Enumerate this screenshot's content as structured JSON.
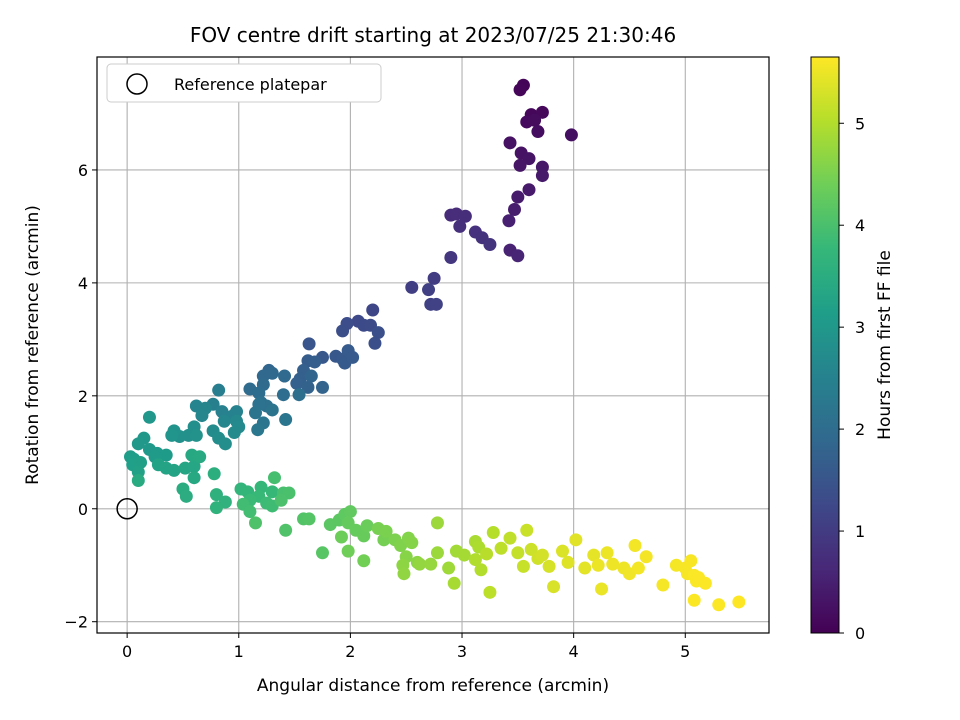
{
  "chart_data": {
    "type": "scatter",
    "title": "FOV centre drift starting at 2023/07/25 21:30:46",
    "xlabel": "Angular distance from reference (arcmin)",
    "ylabel": "Rotation from reference (arcmin)",
    "xlim": [
      -0.27,
      5.75
    ],
    "ylim": [
      -2.2,
      8.0
    ],
    "xticks": [
      0,
      1,
      2,
      3,
      4,
      5
    ],
    "yticks": [
      -2,
      0,
      2,
      4,
      6
    ],
    "grid": true,
    "legend": {
      "placement": "top-left",
      "entries": [
        "Reference platepar"
      ]
    },
    "reference_point": {
      "x": 0,
      "y": 0
    },
    "colorbar": {
      "label": "Hours from first FF file",
      "colormap": "viridis",
      "range": [
        0,
        5.65
      ],
      "ticks": [
        0,
        1,
        2,
        3,
        4,
        5
      ]
    },
    "colormap_stops": [
      "#440154",
      "#482878",
      "#3e4989",
      "#31688e",
      "#26828e",
      "#1f9e89",
      "#35b779",
      "#6ece58",
      "#b5de2b",
      "#fde725"
    ],
    "points": [
      {
        "x": 3.55,
        "y": 7.5,
        "c": 0.05
      },
      {
        "x": 3.52,
        "y": 7.42,
        "c": 0.08
      },
      {
        "x": 3.62,
        "y": 6.98,
        "c": 0.1
      },
      {
        "x": 3.72,
        "y": 7.02,
        "c": 0.12
      },
      {
        "x": 3.58,
        "y": 6.85,
        "c": 0.15
      },
      {
        "x": 3.65,
        "y": 6.88,
        "c": 0.18
      },
      {
        "x": 3.68,
        "y": 6.68,
        "c": 0.2
      },
      {
        "x": 3.98,
        "y": 6.62,
        "c": 0.22
      },
      {
        "x": 3.43,
        "y": 6.48,
        "c": 0.25
      },
      {
        "x": 3.53,
        "y": 6.3,
        "c": 0.28
      },
      {
        "x": 3.6,
        "y": 6.2,
        "c": 0.3
      },
      {
        "x": 3.52,
        "y": 6.08,
        "c": 0.32
      },
      {
        "x": 3.72,
        "y": 6.05,
        "c": 0.35
      },
      {
        "x": 3.72,
        "y": 5.9,
        "c": 0.38
      },
      {
        "x": 3.6,
        "y": 5.65,
        "c": 0.4
      },
      {
        "x": 3.5,
        "y": 5.52,
        "c": 0.42
      },
      {
        "x": 3.47,
        "y": 5.3,
        "c": 0.45
      },
      {
        "x": 3.42,
        "y": 5.1,
        "c": 0.5
      },
      {
        "x": 3.43,
        "y": 4.58,
        "c": 0.55
      },
      {
        "x": 3.5,
        "y": 4.48,
        "c": 0.58
      },
      {
        "x": 2.9,
        "y": 5.2,
        "c": 0.7
      },
      {
        "x": 2.95,
        "y": 5.22,
        "c": 0.72
      },
      {
        "x": 3.03,
        "y": 5.18,
        "c": 0.75
      },
      {
        "x": 2.98,
        "y": 5.0,
        "c": 0.78
      },
      {
        "x": 3.12,
        "y": 4.9,
        "c": 0.8
      },
      {
        "x": 3.18,
        "y": 4.8,
        "c": 0.82
      },
      {
        "x": 3.25,
        "y": 4.68,
        "c": 0.85
      },
      {
        "x": 2.9,
        "y": 4.45,
        "c": 0.9
      },
      {
        "x": 2.75,
        "y": 4.08,
        "c": 1.0
      },
      {
        "x": 2.55,
        "y": 3.92,
        "c": 1.05
      },
      {
        "x": 2.7,
        "y": 3.88,
        "c": 1.08
      },
      {
        "x": 2.72,
        "y": 3.62,
        "c": 1.1
      },
      {
        "x": 2.77,
        "y": 3.62,
        "c": 1.12
      },
      {
        "x": 2.2,
        "y": 3.52,
        "c": 1.2
      },
      {
        "x": 2.07,
        "y": 3.32,
        "c": 1.25
      },
      {
        "x": 2.12,
        "y": 3.25,
        "c": 1.28
      },
      {
        "x": 2.18,
        "y": 3.25,
        "c": 1.3
      },
      {
        "x": 1.97,
        "y": 3.28,
        "c": 1.32
      },
      {
        "x": 1.93,
        "y": 3.15,
        "c": 1.35
      },
      {
        "x": 2.25,
        "y": 3.12,
        "c": 1.38
      },
      {
        "x": 2.22,
        "y": 2.93,
        "c": 1.4
      },
      {
        "x": 1.63,
        "y": 2.92,
        "c": 1.5
      },
      {
        "x": 1.75,
        "y": 2.68,
        "c": 1.55
      },
      {
        "x": 1.87,
        "y": 2.7,
        "c": 1.55
      },
      {
        "x": 1.93,
        "y": 2.65,
        "c": 1.58
      },
      {
        "x": 1.95,
        "y": 2.58,
        "c": 1.6
      },
      {
        "x": 1.98,
        "y": 2.8,
        "c": 1.62
      },
      {
        "x": 2.02,
        "y": 2.68,
        "c": 1.62
      },
      {
        "x": 1.62,
        "y": 2.62,
        "c": 1.65
      },
      {
        "x": 1.68,
        "y": 2.6,
        "c": 1.68
      },
      {
        "x": 1.58,
        "y": 2.45,
        "c": 1.7
      },
      {
        "x": 1.55,
        "y": 2.3,
        "c": 1.72
      },
      {
        "x": 1.52,
        "y": 2.22,
        "c": 1.75
      },
      {
        "x": 1.62,
        "y": 2.15,
        "c": 1.78
      },
      {
        "x": 1.75,
        "y": 2.15,
        "c": 1.8
      },
      {
        "x": 1.65,
        "y": 2.35,
        "c": 1.82
      },
      {
        "x": 1.27,
        "y": 2.45,
        "c": 1.85
      },
      {
        "x": 1.3,
        "y": 2.4,
        "c": 1.88
      },
      {
        "x": 1.22,
        "y": 2.35,
        "c": 1.9
      },
      {
        "x": 1.41,
        "y": 2.35,
        "c": 1.92
      },
      {
        "x": 1.22,
        "y": 2.2,
        "c": 1.95
      },
      {
        "x": 1.1,
        "y": 2.12,
        "c": 1.98
      },
      {
        "x": 1.18,
        "y": 2.05,
        "c": 2.0
      },
      {
        "x": 1.4,
        "y": 2.02,
        "c": 2.02
      },
      {
        "x": 1.54,
        "y": 2.02,
        "c": 2.05
      },
      {
        "x": 1.2,
        "y": 1.88,
        "c": 2.08
      },
      {
        "x": 1.25,
        "y": 1.82,
        "c": 2.1
      },
      {
        "x": 1.18,
        "y": 1.85,
        "c": 2.12
      },
      {
        "x": 1.3,
        "y": 1.75,
        "c": 2.15
      },
      {
        "x": 1.15,
        "y": 1.7,
        "c": 2.18
      },
      {
        "x": 1.42,
        "y": 1.58,
        "c": 2.2
      },
      {
        "x": 1.22,
        "y": 1.52,
        "c": 2.22
      },
      {
        "x": 1.17,
        "y": 1.4,
        "c": 2.25
      },
      {
        "x": 0.82,
        "y": 2.1,
        "c": 2.4
      },
      {
        "x": 0.77,
        "y": 1.85,
        "c": 2.45
      },
      {
        "x": 0.85,
        "y": 1.72,
        "c": 2.48
      },
      {
        "x": 0.95,
        "y": 1.65,
        "c": 2.5
      },
      {
        "x": 0.98,
        "y": 1.72,
        "c": 2.52
      },
      {
        "x": 0.62,
        "y": 1.82,
        "c": 2.55
      },
      {
        "x": 0.7,
        "y": 1.78,
        "c": 2.58
      },
      {
        "x": 0.67,
        "y": 1.65,
        "c": 2.6
      },
      {
        "x": 0.87,
        "y": 1.55,
        "c": 2.62
      },
      {
        "x": 0.98,
        "y": 1.55,
        "c": 2.65
      },
      {
        "x": 1.0,
        "y": 1.45,
        "c": 2.68
      },
      {
        "x": 0.96,
        "y": 1.35,
        "c": 2.7
      },
      {
        "x": 0.77,
        "y": 1.38,
        "c": 2.72
      },
      {
        "x": 0.82,
        "y": 1.25,
        "c": 2.75
      },
      {
        "x": 0.88,
        "y": 1.15,
        "c": 2.78
      },
      {
        "x": 0.6,
        "y": 1.45,
        "c": 2.8
      },
      {
        "x": 0.55,
        "y": 1.3,
        "c": 2.82
      },
      {
        "x": 0.47,
        "y": 1.28,
        "c": 2.85
      },
      {
        "x": 0.62,
        "y": 1.3,
        "c": 2.88
      },
      {
        "x": 0.42,
        "y": 1.38,
        "c": 2.9
      },
      {
        "x": 0.4,
        "y": 1.3,
        "c": 2.92
      },
      {
        "x": 0.2,
        "y": 1.62,
        "c": 2.95
      },
      {
        "x": 0.15,
        "y": 1.25,
        "c": 2.98
      },
      {
        "x": 0.1,
        "y": 1.15,
        "c": 3.0
      },
      {
        "x": 0.2,
        "y": 1.05,
        "c": 3.02
      },
      {
        "x": 0.27,
        "y": 0.98,
        "c": 3.05
      },
      {
        "x": 0.25,
        "y": 0.92,
        "c": 3.08
      },
      {
        "x": 0.35,
        "y": 0.95,
        "c": 3.1
      },
      {
        "x": 0.03,
        "y": 0.92,
        "c": 3.12
      },
      {
        "x": 0.06,
        "y": 0.88,
        "c": 3.15
      },
      {
        "x": 0.05,
        "y": 0.78,
        "c": 3.18
      },
      {
        "x": 0.12,
        "y": 0.82,
        "c": 3.2
      },
      {
        "x": 0.1,
        "y": 0.65,
        "c": 3.22
      },
      {
        "x": 0.28,
        "y": 0.78,
        "c": 3.25
      },
      {
        "x": 0.35,
        "y": 0.72,
        "c": 3.28
      },
      {
        "x": 0.42,
        "y": 0.68,
        "c": 3.3
      },
      {
        "x": 0.52,
        "y": 0.72,
        "c": 3.32
      },
      {
        "x": 0.6,
        "y": 0.75,
        "c": 3.35
      },
      {
        "x": 0.6,
        "y": 0.55,
        "c": 3.38
      },
      {
        "x": 0.58,
        "y": 0.95,
        "c": 3.4
      },
      {
        "x": 0.65,
        "y": 0.92,
        "c": 3.42
      },
      {
        "x": 0.1,
        "y": 0.5,
        "c": 3.45
      },
      {
        "x": 0.5,
        "y": 0.35,
        "c": 3.48
      },
      {
        "x": 0.53,
        "y": 0.22,
        "c": 3.5
      },
      {
        "x": 0.78,
        "y": 0.62,
        "c": 3.55
      },
      {
        "x": 0.8,
        "y": 0.25,
        "c": 3.6
      },
      {
        "x": 0.88,
        "y": 0.12,
        "c": 3.62
      },
      {
        "x": 0.8,
        "y": 0.02,
        "c": 3.65
      },
      {
        "x": 1.02,
        "y": 0.35,
        "c": 3.7
      },
      {
        "x": 1.08,
        "y": 0.3,
        "c": 3.72
      },
      {
        "x": 1.2,
        "y": 0.38,
        "c": 3.75
      },
      {
        "x": 1.3,
        "y": 0.3,
        "c": 3.78
      },
      {
        "x": 1.18,
        "y": 0.22,
        "c": 3.8
      },
      {
        "x": 1.1,
        "y": 0.15,
        "c": 3.82
      },
      {
        "x": 1.25,
        "y": 0.1,
        "c": 3.85
      },
      {
        "x": 1.3,
        "y": 0.05,
        "c": 3.88
      },
      {
        "x": 1.04,
        "y": 0.08,
        "c": 3.9
      },
      {
        "x": 1.1,
        "y": -0.05,
        "c": 3.92
      },
      {
        "x": 1.32,
        "y": 0.55,
        "c": 3.95
      },
      {
        "x": 1.4,
        "y": 0.28,
        "c": 3.98
      },
      {
        "x": 1.45,
        "y": 0.28,
        "c": 4.0
      },
      {
        "x": 1.38,
        "y": 0.15,
        "c": 4.02
      },
      {
        "x": 1.15,
        "y": -0.25,
        "c": 4.05
      },
      {
        "x": 1.42,
        "y": -0.38,
        "c": 4.08
      },
      {
        "x": 1.58,
        "y": -0.18,
        "c": 4.1
      },
      {
        "x": 1.63,
        "y": -0.18,
        "c": 4.12
      },
      {
        "x": 1.75,
        "y": -0.78,
        "c": 4.15
      },
      {
        "x": 1.82,
        "y": -0.28,
        "c": 4.18
      },
      {
        "x": 1.9,
        "y": -0.2,
        "c": 4.2
      },
      {
        "x": 1.95,
        "y": -0.1,
        "c": 4.22
      },
      {
        "x": 2.0,
        "y": -0.05,
        "c": 4.25
      },
      {
        "x": 1.98,
        "y": -0.25,
        "c": 4.28
      },
      {
        "x": 2.05,
        "y": -0.38,
        "c": 4.3
      },
      {
        "x": 2.12,
        "y": -0.48,
        "c": 4.32
      },
      {
        "x": 2.15,
        "y": -0.3,
        "c": 4.35
      },
      {
        "x": 1.92,
        "y": -0.5,
        "c": 4.38
      },
      {
        "x": 1.98,
        "y": -0.75,
        "c": 4.4
      },
      {
        "x": 2.12,
        "y": -0.92,
        "c": 4.42
      },
      {
        "x": 2.3,
        "y": -0.55,
        "c": 4.45
      },
      {
        "x": 2.25,
        "y": -0.35,
        "c": 4.48
      },
      {
        "x": 2.32,
        "y": -0.4,
        "c": 4.5
      },
      {
        "x": 2.4,
        "y": -0.55,
        "c": 4.52
      },
      {
        "x": 2.45,
        "y": -0.65,
        "c": 4.55
      },
      {
        "x": 2.52,
        "y": -0.52,
        "c": 4.58
      },
      {
        "x": 2.55,
        "y": -0.6,
        "c": 4.6
      },
      {
        "x": 2.5,
        "y": -0.85,
        "c": 4.62
      },
      {
        "x": 2.6,
        "y": -0.95,
        "c": 4.65
      },
      {
        "x": 2.47,
        "y": -1.0,
        "c": 4.68
      },
      {
        "x": 2.48,
        "y": -1.15,
        "c": 4.7
      },
      {
        "x": 2.62,
        "y": -0.98,
        "c": 4.72
      },
      {
        "x": 2.72,
        "y": -0.98,
        "c": 4.75
      },
      {
        "x": 2.78,
        "y": -0.78,
        "c": 4.78
      },
      {
        "x": 2.78,
        "y": -0.25,
        "c": 4.8
      },
      {
        "x": 2.88,
        "y": -1.05,
        "c": 4.82
      },
      {
        "x": 2.95,
        "y": -0.75,
        "c": 4.85
      },
      {
        "x": 3.02,
        "y": -0.82,
        "c": 4.88
      },
      {
        "x": 2.93,
        "y": -1.32,
        "c": 4.9
      },
      {
        "x": 3.12,
        "y": -0.58,
        "c": 4.92
      },
      {
        "x": 3.15,
        "y": -0.68,
        "c": 4.95
      },
      {
        "x": 3.12,
        "y": -0.9,
        "c": 4.98
      },
      {
        "x": 3.17,
        "y": -1.08,
        "c": 5.0
      },
      {
        "x": 3.28,
        "y": -0.42,
        "c": 5.02
      },
      {
        "x": 3.22,
        "y": -0.8,
        "c": 5.05
      },
      {
        "x": 3.25,
        "y": -1.48,
        "c": 5.08
      },
      {
        "x": 3.35,
        "y": -0.7,
        "c": 5.1
      },
      {
        "x": 3.43,
        "y": -0.52,
        "c": 5.12
      },
      {
        "x": 3.5,
        "y": -0.78,
        "c": 5.15
      },
      {
        "x": 3.55,
        "y": -1.02,
        "c": 5.18
      },
      {
        "x": 3.58,
        "y": -0.38,
        "c": 5.2
      },
      {
        "x": 3.62,
        "y": -0.72,
        "c": 5.22
      },
      {
        "x": 3.68,
        "y": -0.88,
        "c": 5.25
      },
      {
        "x": 3.72,
        "y": -0.82,
        "c": 5.28
      },
      {
        "x": 3.78,
        "y": -1.02,
        "c": 5.3
      },
      {
        "x": 3.82,
        "y": -1.38,
        "c": 5.32
      },
      {
        "x": 3.9,
        "y": -0.75,
        "c": 5.35
      },
      {
        "x": 3.95,
        "y": -0.95,
        "c": 5.38
      },
      {
        "x": 4.02,
        "y": -0.55,
        "c": 5.4
      },
      {
        "x": 4.1,
        "y": -1.05,
        "c": 5.42
      },
      {
        "x": 4.18,
        "y": -0.82,
        "c": 5.45
      },
      {
        "x": 4.25,
        "y": -1.42,
        "c": 5.48
      },
      {
        "x": 4.22,
        "y": -1.0,
        "c": 5.5
      },
      {
        "x": 4.3,
        "y": -0.78,
        "c": 5.5
      },
      {
        "x": 4.35,
        "y": -0.98,
        "c": 5.52
      },
      {
        "x": 4.45,
        "y": -1.05,
        "c": 5.52
      },
      {
        "x": 4.5,
        "y": -1.15,
        "c": 5.54
      },
      {
        "x": 4.55,
        "y": -0.65,
        "c": 5.55
      },
      {
        "x": 4.58,
        "y": -1.05,
        "c": 5.56
      },
      {
        "x": 4.65,
        "y": -0.85,
        "c": 5.57
      },
      {
        "x": 4.8,
        "y": -1.35,
        "c": 5.58
      },
      {
        "x": 4.92,
        "y": -1.0,
        "c": 5.58
      },
      {
        "x": 5.0,
        "y": -1.05,
        "c": 5.6
      },
      {
        "x": 5.02,
        "y": -1.15,
        "c": 5.6
      },
      {
        "x": 5.05,
        "y": -0.92,
        "c": 5.61
      },
      {
        "x": 5.08,
        "y": -1.18,
        "c": 5.62
      },
      {
        "x": 5.1,
        "y": -1.28,
        "c": 5.62
      },
      {
        "x": 5.12,
        "y": -1.22,
        "c": 5.63
      },
      {
        "x": 5.18,
        "y": -1.32,
        "c": 5.63
      },
      {
        "x": 5.08,
        "y": -1.62,
        "c": 5.64
      },
      {
        "x": 5.3,
        "y": -1.7,
        "c": 5.64
      },
      {
        "x": 5.48,
        "y": -1.65,
        "c": 5.65
      }
    ]
  }
}
